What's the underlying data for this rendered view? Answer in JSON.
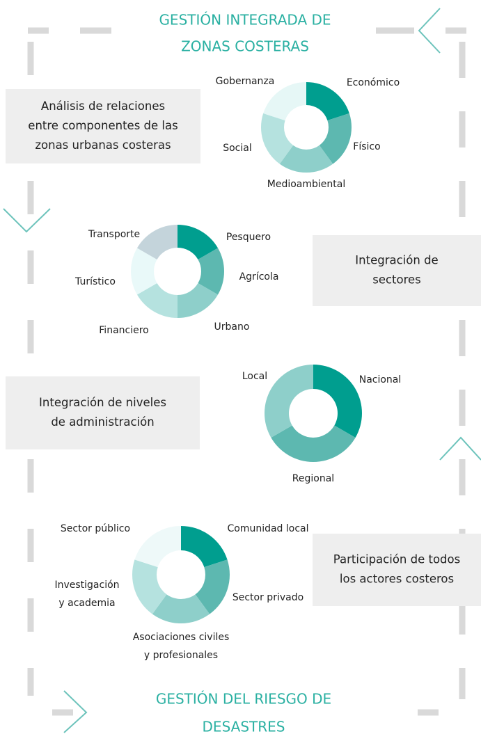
{
  "header": {
    "title": [
      "GESTIÓN INTEGRADA DE",
      "ZONAS COSTERAS"
    ]
  },
  "sections": [
    {
      "box": [
        "Análisis de relaciones",
        "entre componentes de las",
        "zonas urbanas costeras"
      ],
      "donut": [
        {
          "label": [
            "Económico"
          ],
          "color": "#009e8f"
        },
        {
          "label": [
            "Físico"
          ],
          "color": "#5db8b0"
        },
        {
          "label": [
            "Medioambiental"
          ],
          "color": "#8ecfca"
        },
        {
          "label": [
            "Social"
          ],
          "color": "#b5e2df"
        },
        {
          "label": [
            "Gobernanza"
          ],
          "color": "#e6f7f6"
        }
      ]
    },
    {
      "box": [
        "Integración de",
        "sectores"
      ],
      "donut": [
        {
          "label": [
            "Pesquero"
          ],
          "color": "#009e8f"
        },
        {
          "label": [
            "Agrícola"
          ],
          "color": "#5db8b0"
        },
        {
          "label": [
            "Urbano"
          ],
          "color": "#8ecfca"
        },
        {
          "label": [
            "Financiero"
          ],
          "color": "#b5e2df"
        },
        {
          "label": [
            "Turístico"
          ],
          "color": "#e9f9f9"
        },
        {
          "label": [
            "Transporte"
          ],
          "color": "#c4d4db"
        }
      ]
    },
    {
      "box": [
        "Integración de niveles",
        "de administración"
      ],
      "donut": [
        {
          "label": [
            "Nacional"
          ],
          "color": "#009e8f"
        },
        {
          "label": [
            "Regional"
          ],
          "color": "#5db8b0"
        },
        {
          "label": [
            "Local"
          ],
          "color": "#8ecfca"
        }
      ]
    },
    {
      "box": [
        "Participación de todos",
        "los actores costeros"
      ],
      "donut": [
        {
          "label": [
            "Comunidad local"
          ],
          "color": "#009e8f"
        },
        {
          "label": [
            "Sector privado"
          ],
          "color": "#5db8b0"
        },
        {
          "label": [
            "Asociaciones civiles",
            "y profesionales"
          ],
          "color": "#8ecfca"
        },
        {
          "label": [
            "Investigación",
            "y academia"
          ],
          "color": "#b5e2df"
        },
        {
          "label": [
            "Sector público"
          ],
          "color": "#eef9f9"
        }
      ]
    }
  ],
  "footer": {
    "title": [
      "GESTIÓN DEL RIESGO DE",
      "DESASTRES"
    ]
  }
}
